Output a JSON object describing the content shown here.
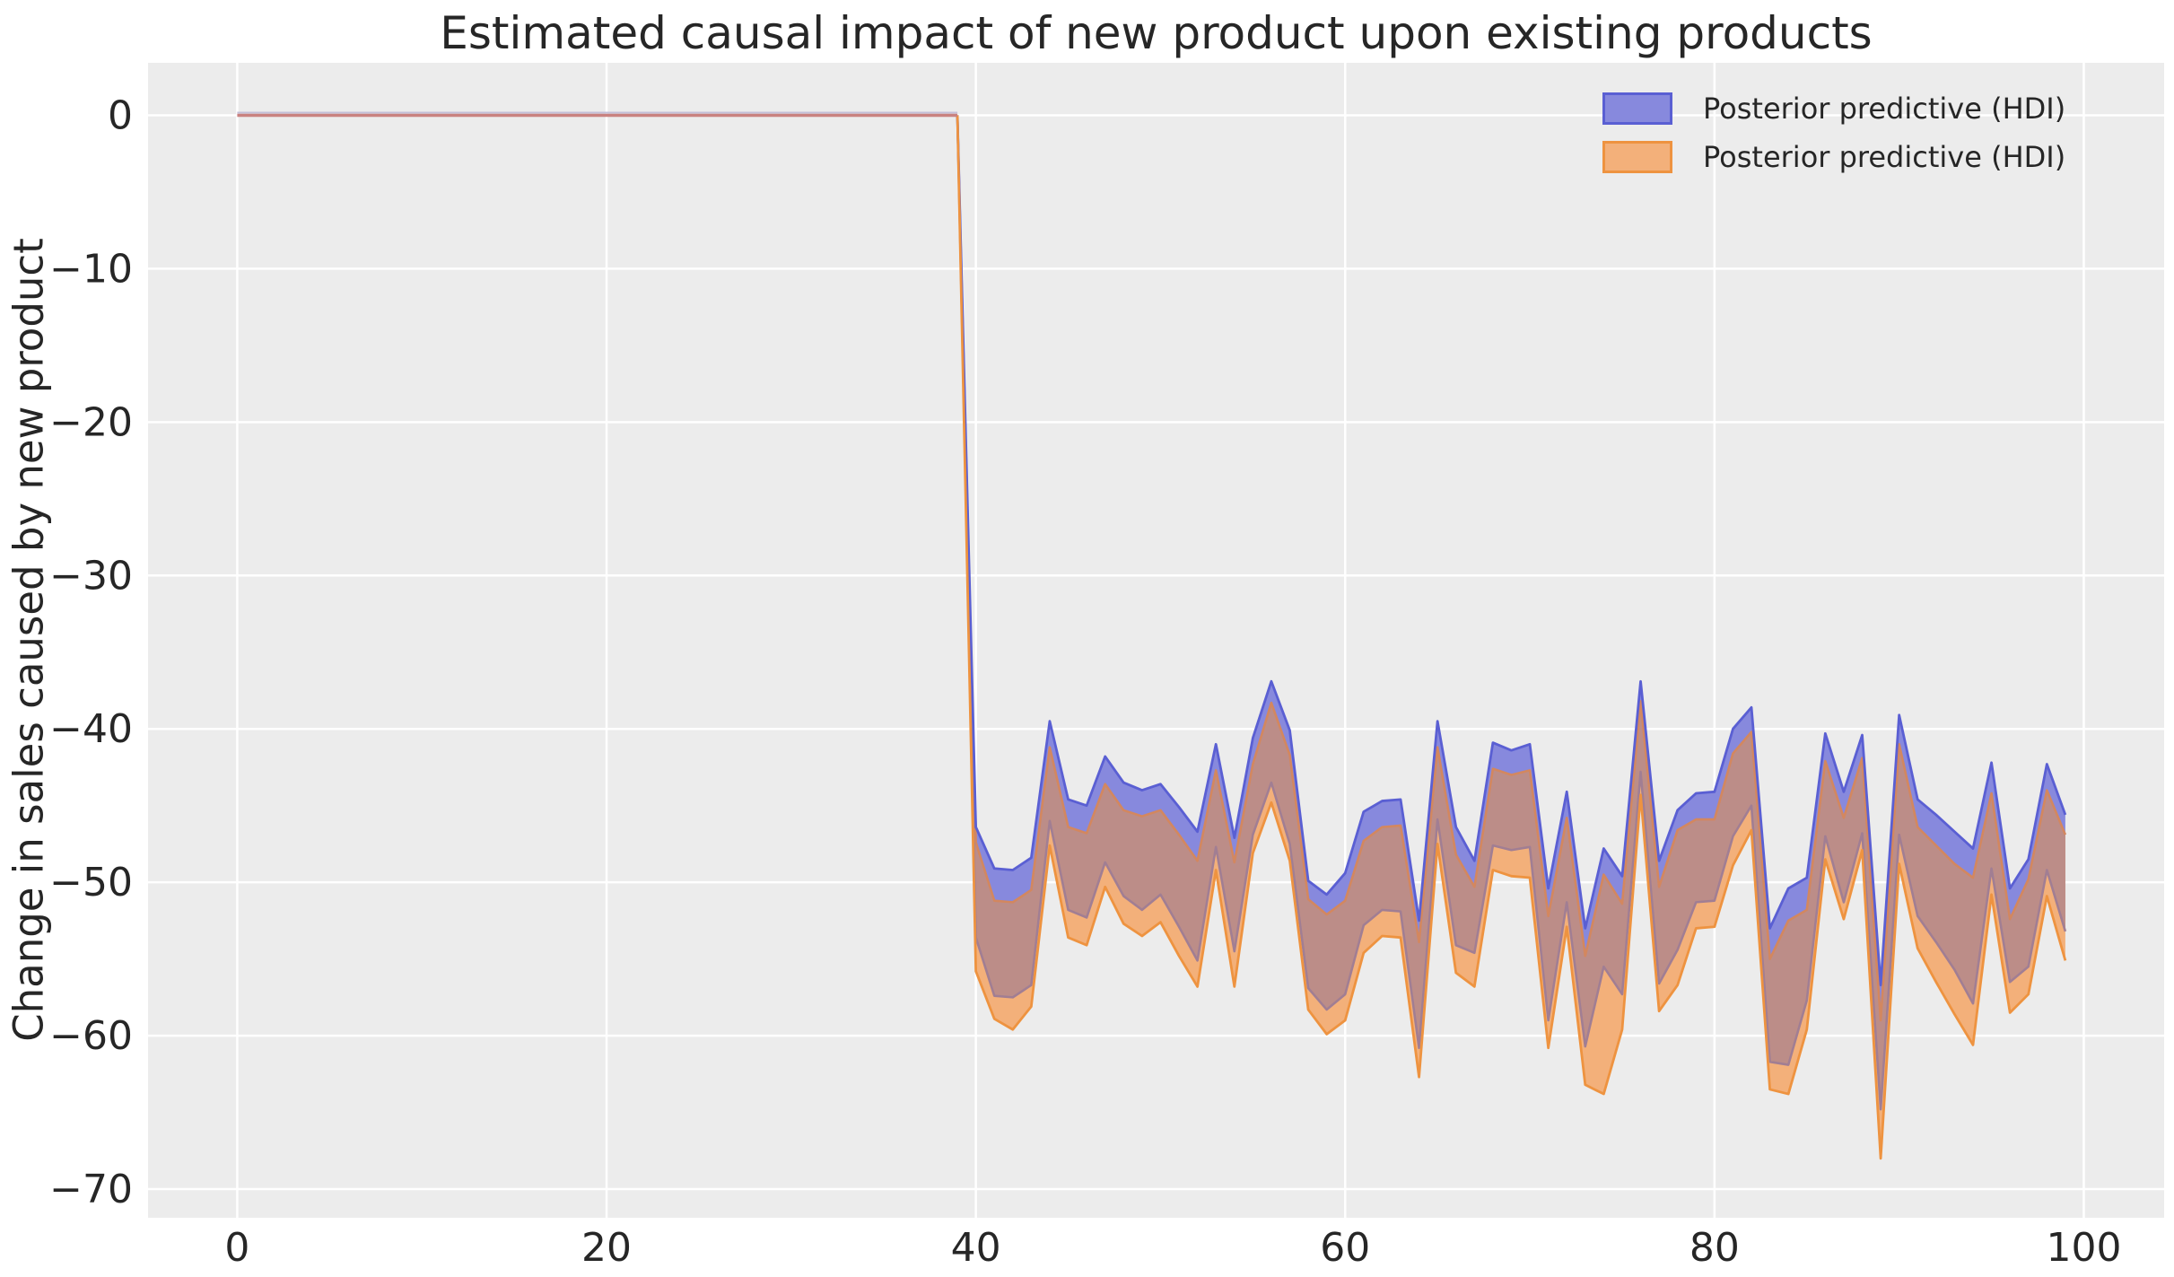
{
  "title": "Estimated causal impact of new product upon existing products",
  "y_axis_label": "Change in sales caused by new product",
  "legend": {
    "items": [
      {
        "label": "Posterior predictive (HDI)",
        "swatch_fill": "#8789dd",
        "swatch_border": "#5a5fd3"
      },
      {
        "label": "Posterior predictive (HDI)",
        "swatch_fill": "#f3b07a",
        "swatch_border": "#ee9340"
      }
    ]
  },
  "colors": {
    "figure_background": "#ffffff",
    "plot_background": "#ececec",
    "gridline": "#ffffff",
    "text": "#262626",
    "blue_fill": "#8789dd",
    "blue_edge": "#5a5fd3",
    "orange_fill": "#f3b07a",
    "orange_edge": "#ee9340",
    "overlap_fill": "#bc8d88",
    "blue_lower_line_in_overlap": "#a17e93",
    "orange_upper_line_in_overlap": "#d3875f",
    "zero_line": "#c98280",
    "zero_line_fringe": "#c3bfd8"
  },
  "chart_data": {
    "type": "area",
    "title": "Estimated causal impact of new product upon existing products",
    "xlabel": "",
    "ylabel": "Change in sales caused by new product",
    "xlim": [
      -4.83,
      104.35
    ],
    "ylim": [
      -71.87,
      3.42
    ],
    "grid": true,
    "legend_position": "upper right",
    "treatment_start_x": 40,
    "x_ticks": {
      "values": [
        0,
        20,
        40,
        60,
        80,
        100
      ],
      "labels": [
        "0",
        "20",
        "40",
        "60",
        "80",
        "100"
      ]
    },
    "y_ticks": {
      "values": [
        0,
        -10,
        -20,
        -30,
        -40,
        -50,
        -60,
        -70
      ],
      "labels": [
        "0",
        "−10",
        "−20",
        "−30",
        "−40",
        "−50",
        "−60",
        "−70"
      ]
    },
    "x": [
      0,
      1,
      2,
      3,
      4,
      5,
      6,
      7,
      8,
      9,
      10,
      11,
      12,
      13,
      14,
      15,
      16,
      17,
      18,
      19,
      20,
      21,
      22,
      23,
      24,
      25,
      26,
      27,
      28,
      29,
      30,
      31,
      32,
      33,
      34,
      35,
      36,
      37,
      38,
      39,
      40,
      41,
      42,
      43,
      44,
      45,
      46,
      47,
      48,
      49,
      50,
      51,
      52,
      53,
      54,
      55,
      56,
      57,
      58,
      59,
      60,
      61,
      62,
      63,
      64,
      65,
      66,
      67,
      68,
      69,
      70,
      71,
      72,
      73,
      74,
      75,
      76,
      77,
      78,
      79,
      80,
      81,
      82,
      83,
      84,
      85,
      86,
      87,
      88,
      89,
      90,
      91,
      92,
      93,
      94,
      95,
      96,
      97,
      98,
      99
    ],
    "series": [
      {
        "name": "Posterior predictive (HDI)",
        "band": "blue",
        "upper": [
          0,
          0,
          0,
          0,
          0,
          0,
          0,
          0,
          0,
          0,
          0,
          0,
          0,
          0,
          0,
          0,
          0,
          0,
          0,
          0,
          0,
          0,
          0,
          0,
          0,
          0,
          0,
          0,
          0,
          0,
          0,
          0,
          0,
          0,
          0,
          0,
          0,
          0,
          0,
          0,
          -46.4,
          -49.1,
          -49.2,
          -48.4,
          -39.5,
          -44.6,
          -45.0,
          -41.8,
          -43.5,
          -44.0,
          -43.6,
          -45.1,
          -46.7,
          -41.0,
          -47.1,
          -40.6,
          -36.9,
          -40.1,
          -49.9,
          -50.8,
          -49.4,
          -45.4,
          -44.7,
          -44.6,
          -52.5,
          -39.5,
          -46.4,
          -48.6,
          -40.9,
          -41.4,
          -41.0,
          -50.4,
          -44.1,
          -53.0,
          -47.8,
          -49.6,
          -36.9,
          -48.6,
          -45.3,
          -44.2,
          -44.1,
          -40.0,
          -38.6,
          -53.0,
          -50.4,
          -49.7,
          -40.3,
          -44.1,
          -40.4,
          -56.7,
          -39.1,
          -44.6,
          -45.6,
          -46.7,
          -47.8,
          -42.2,
          -50.4,
          -48.5,
          -42.3,
          -45.6
        ],
        "lower": [
          0,
          0,
          0,
          0,
          0,
          0,
          0,
          0,
          0,
          0,
          0,
          0,
          0,
          0,
          0,
          0,
          0,
          0,
          0,
          0,
          0,
          0,
          0,
          0,
          0,
          0,
          0,
          0,
          0,
          0,
          0,
          0,
          0,
          0,
          0,
          0,
          0,
          0,
          0,
          0,
          -53.6,
          -57.4,
          -57.5,
          -56.7,
          -46.0,
          -51.8,
          -52.3,
          -48.7,
          -50.9,
          -51.8,
          -50.8,
          -52.9,
          -55.1,
          -47.7,
          -54.5,
          -46.9,
          -43.5,
          -47.5,
          -56.9,
          -58.3,
          -57.3,
          -52.8,
          -51.8,
          -51.9,
          -60.8,
          -45.9,
          -54.1,
          -54.6,
          -47.6,
          -47.9,
          -47.7,
          -59.0,
          -51.3,
          -60.7,
          -55.5,
          -57.3,
          -42.8,
          -56.6,
          -54.4,
          -51.3,
          -51.2,
          -47.0,
          -45.0,
          -61.7,
          -61.9,
          -57.7,
          -47.0,
          -51.3,
          -46.8,
          -64.8,
          -46.9,
          -52.2,
          -53.9,
          -55.7,
          -57.9,
          -49.1,
          -56.5,
          -55.5,
          -49.2,
          -53.2
        ]
      },
      {
        "name": "Posterior predictive (HDI)",
        "band": "orange",
        "upper": [
          0,
          0,
          0,
          0,
          0,
          0,
          0,
          0,
          0,
          0,
          0,
          0,
          0,
          0,
          0,
          0,
          0,
          0,
          0,
          0,
          0,
          0,
          0,
          0,
          0,
          0,
          0,
          0,
          0,
          0,
          0,
          0,
          0,
          0,
          0,
          0,
          0,
          0,
          0,
          0,
          -47.4,
          -51.2,
          -51.3,
          -50.5,
          -41.2,
          -46.4,
          -46.8,
          -43.6,
          -45.3,
          -45.7,
          -45.3,
          -46.9,
          -48.6,
          -42.7,
          -48.7,
          -42.3,
          -38.3,
          -41.7,
          -51.1,
          -52.1,
          -51.2,
          -47.3,
          -46.4,
          -46.3,
          -53.9,
          -41.2,
          -48.2,
          -50.3,
          -42.6,
          -43.0,
          -42.7,
          -52.2,
          -45.8,
          -54.8,
          -49.5,
          -51.4,
          -38.2,
          -50.3,
          -46.6,
          -45.9,
          -45.9,
          -41.6,
          -40.2,
          -55.0,
          -52.5,
          -51.8,
          -42.1,
          -45.8,
          -41.9,
          -59.0,
          -41.0,
          -46.4,
          -47.6,
          -48.8,
          -49.7,
          -44.2,
          -52.4,
          -49.8,
          -44.0,
          -46.9
        ],
        "lower": [
          0,
          0,
          0,
          0,
          0,
          0,
          0,
          0,
          0,
          0,
          0,
          0,
          0,
          0,
          0,
          0,
          0,
          0,
          0,
          0,
          0,
          0,
          0,
          0,
          0,
          0,
          0,
          0,
          0,
          0,
          0,
          0,
          0,
          0,
          0,
          0,
          0,
          0,
          0,
          0,
          -55.8,
          -58.9,
          -59.6,
          -58.1,
          -47.6,
          -53.6,
          -54.1,
          -50.3,
          -52.7,
          -53.5,
          -52.6,
          -54.8,
          -56.8,
          -49.2,
          -56.8,
          -48.1,
          -44.8,
          -48.6,
          -58.3,
          -59.9,
          -59.0,
          -54.6,
          -53.5,
          -53.6,
          -62.7,
          -47.5,
          -55.9,
          -56.8,
          -49.2,
          -49.6,
          -49.7,
          -60.8,
          -52.9,
          -63.2,
          -63.8,
          -59.6,
          -44.3,
          -58.4,
          -56.7,
          -53.0,
          -52.9,
          -48.9,
          -46.6,
          -63.5,
          -63.8,
          -59.6,
          -48.5,
          -52.4,
          -47.9,
          -68.0,
          -48.8,
          -54.3,
          -56.5,
          -58.6,
          -60.6,
          -50.8,
          -58.5,
          -57.3,
          -50.9,
          -55.1
        ]
      }
    ]
  }
}
